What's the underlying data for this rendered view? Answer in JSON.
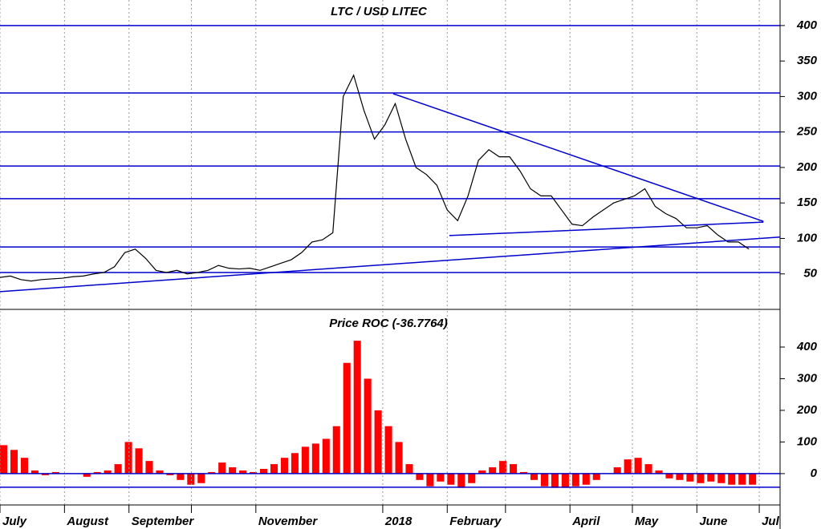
{
  "chart_data": [
    {
      "type": "line",
      "title": "LTC / USD LITEC",
      "xlim": [
        0,
        375
      ],
      "ylim": [
        0,
        436
      ],
      "yticks": [
        50,
        100,
        150,
        200,
        250,
        300,
        350,
        400
      ],
      "horizontal_lines": [
        400,
        305,
        250,
        202,
        156,
        88,
        52
      ],
      "trendlines": [
        {
          "x": [
            189,
            367
          ],
          "y": [
            304,
            124
          ]
        },
        {
          "x": [
            216,
            367
          ],
          "y": [
            104,
            123
          ]
        },
        {
          "x": [
            0,
            375
          ],
          "y": [
            25,
            102
          ]
        }
      ],
      "line_color": "#0000cc",
      "x": [
        0,
        5,
        10,
        15,
        20,
        25,
        30,
        35,
        40,
        45,
        50,
        55,
        60,
        65,
        70,
        75,
        80,
        85,
        90,
        95,
        100,
        105,
        110,
        115,
        120,
        125,
        130,
        135,
        140,
        145,
        150,
        155,
        160,
        165,
        170,
        175,
        180,
        185,
        190,
        195,
        200,
        205,
        210,
        215,
        220,
        225,
        230,
        235,
        240,
        245,
        250,
        255,
        260,
        265,
        270,
        275,
        280,
        285,
        290,
        295,
        300,
        305,
        310,
        315,
        320,
        325,
        330,
        335,
        340,
        345,
        350,
        355,
        360
      ],
      "series": [
        {
          "color": "#000000",
          "values": [
            45,
            47,
            42,
            40,
            42,
            43,
            44,
            46,
            47,
            50,
            52,
            60,
            80,
            85,
            72,
            55,
            52,
            55,
            50,
            52,
            55,
            62,
            58,
            57,
            58,
            55,
            60,
            65,
            70,
            80,
            95,
            98,
            108,
            300,
            330,
            280,
            240,
            260,
            290,
            240,
            200,
            190,
            175,
            140,
            125,
            160,
            210,
            225,
            215,
            215,
            195,
            170,
            160,
            160,
            140,
            120,
            118,
            130,
            140,
            150,
            155,
            160,
            170,
            145,
            135,
            128,
            115,
            115,
            118,
            105,
            95,
            95,
            85
          ]
        }
      ]
    },
    {
      "type": "bar",
      "title": "Price ROC (-36.7764)",
      "xlim": [
        0,
        375
      ],
      "ylim": [
        -99,
        514
      ],
      "yticks": [
        0,
        100,
        200,
        300,
        400
      ],
      "horizontal_lines": [
        0,
        -43
      ],
      "line_color": "#0000cc",
      "xticks": [
        {
          "value": 0,
          "label": "July"
        },
        {
          "value": 31,
          "label": "August"
        },
        {
          "value": 62,
          "label": "September"
        },
        {
          "value": 92,
          "label": null
        },
        {
          "value": 123,
          "label": "November"
        },
        {
          "value": 184,
          "label": "2018"
        },
        {
          "value": 215,
          "label": "February"
        },
        {
          "value": 243,
          "label": null
        },
        {
          "value": 274,
          "label": "April"
        },
        {
          "value": 304,
          "label": "May"
        },
        {
          "value": 335,
          "label": "June"
        },
        {
          "value": 365,
          "label": "Jul"
        }
      ],
      "x": [
        0,
        5,
        10,
        15,
        20,
        25,
        30,
        35,
        40,
        45,
        50,
        55,
        60,
        65,
        70,
        75,
        80,
        85,
        90,
        95,
        100,
        105,
        110,
        115,
        120,
        125,
        130,
        135,
        140,
        145,
        150,
        155,
        160,
        165,
        170,
        175,
        180,
        185,
        190,
        195,
        200,
        205,
        210,
        215,
        220,
        225,
        230,
        235,
        240,
        245,
        250,
        255,
        260,
        265,
        270,
        275,
        280,
        285,
        290,
        295,
        300,
        305,
        310,
        315,
        320,
        325,
        330,
        335,
        340,
        345,
        350,
        355,
        360
      ],
      "series": [
        {
          "color": "#ff0000",
          "values": [
            90,
            75,
            50,
            10,
            -5,
            5,
            0,
            0,
            -10,
            5,
            10,
            30,
            100,
            80,
            40,
            10,
            -5,
            -20,
            -35,
            -30,
            5,
            35,
            20,
            10,
            5,
            15,
            30,
            50,
            65,
            85,
            95,
            110,
            150,
            350,
            420,
            300,
            200,
            150,
            100,
            30,
            -20,
            -40,
            -25,
            -35,
            -45,
            -30,
            10,
            20,
            40,
            30,
            5,
            -20,
            -40,
            -45,
            -45,
            -40,
            -35,
            -20,
            0,
            20,
            45,
            50,
            30,
            10,
            -15,
            -20,
            -25,
            -30,
            -25,
            -30,
            -35,
            -35,
            -35
          ]
        }
      ]
    }
  ]
}
